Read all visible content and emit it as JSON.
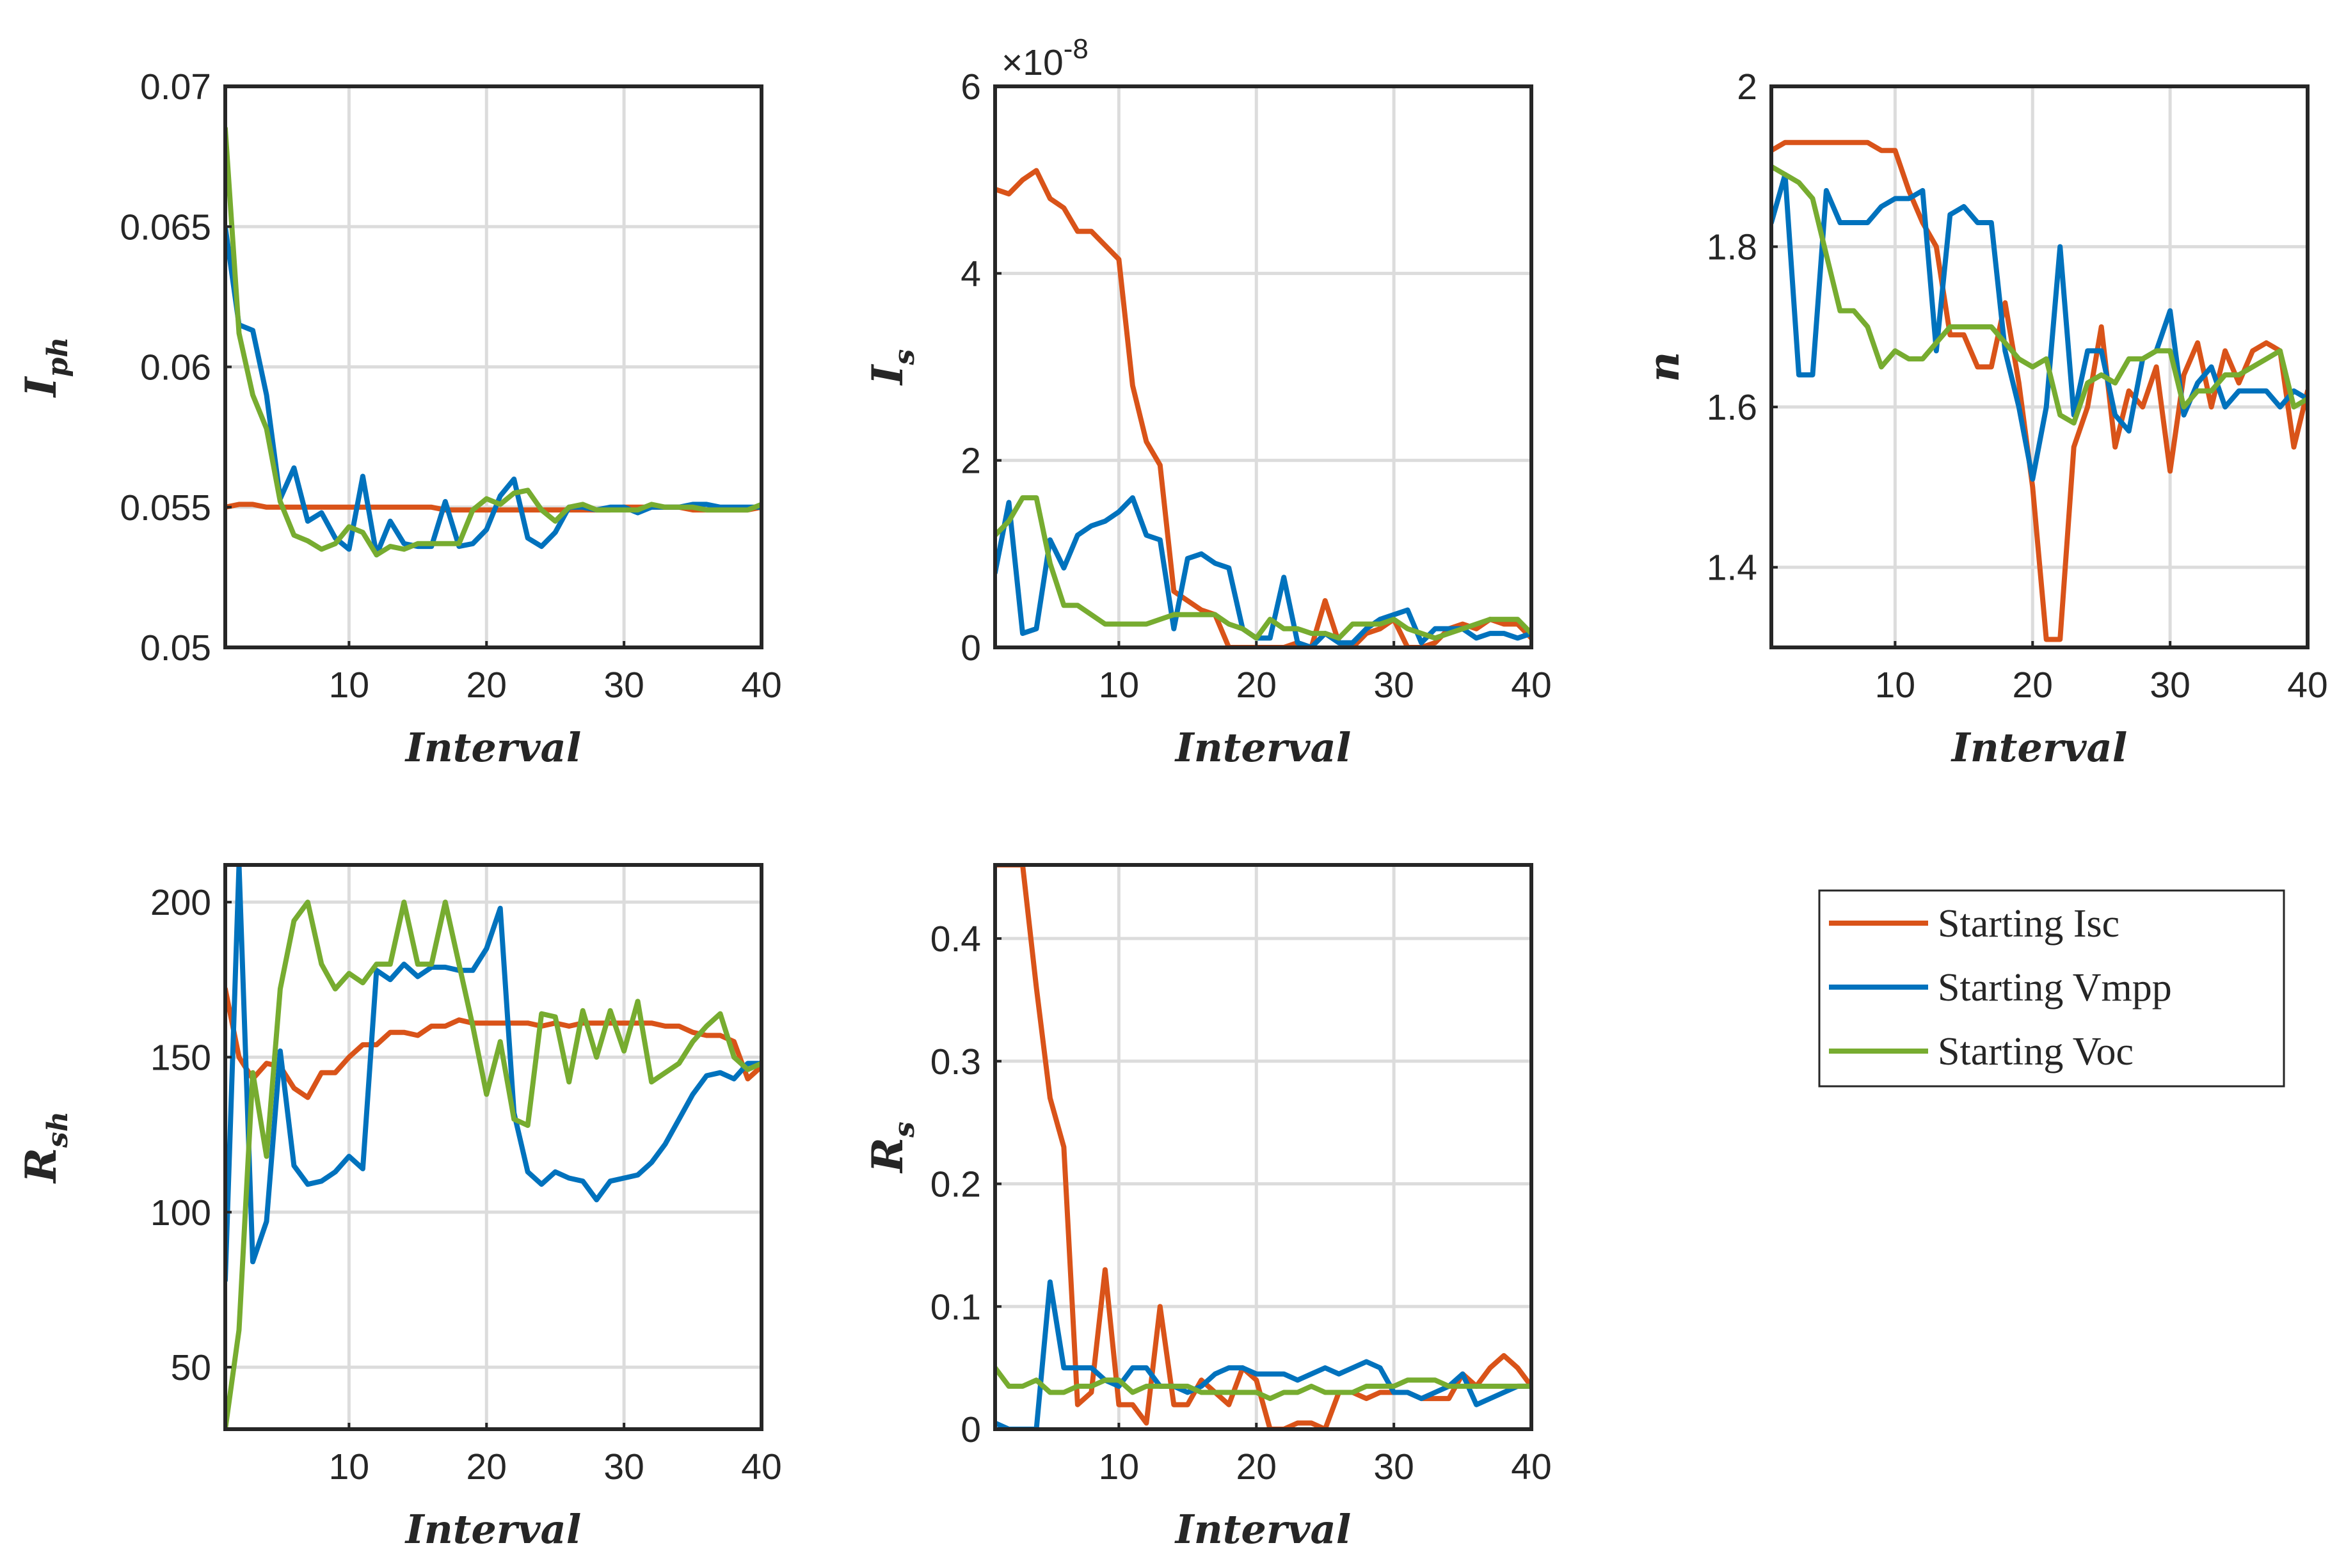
{
  "series_styles": [
    {
      "name": "Starting Isc",
      "color": "#D95319"
    },
    {
      "name": "Starting Vmpp",
      "color": "#0072BD"
    },
    {
      "name": "Starting Voc",
      "color": "#77AC30"
    }
  ],
  "legend": {
    "placement": "right"
  },
  "chart_data": [
    {
      "type": "line",
      "id": "iph",
      "ylabel": "I",
      "ylabel_sub": "ph",
      "ylabel_sub_style": "subscript",
      "xlabel": "Interval",
      "xlim": [
        1,
        40
      ],
      "ylim": [
        0.05,
        0.07
      ],
      "xticks": [
        10,
        20,
        30,
        40
      ],
      "xticklabels": [
        "10",
        "20",
        "30",
        "40"
      ],
      "yticks": [
        0.05,
        0.055,
        0.06,
        0.065,
        0.07
      ],
      "yticklabels": [
        "0.05",
        "0.055",
        "0.06",
        "0.065",
        "0.07"
      ],
      "grid": true,
      "x": [
        1,
        2,
        3,
        4,
        5,
        6,
        7,
        8,
        9,
        10,
        11,
        12,
        13,
        14,
        15,
        16,
        17,
        18,
        19,
        20,
        21,
        22,
        23,
        24,
        25,
        26,
        27,
        28,
        29,
        30,
        31,
        32,
        33,
        34,
        35,
        36,
        37,
        38,
        39,
        40
      ],
      "series": [
        {
          "name": "Starting Isc",
          "values": [
            0.055,
            0.0551,
            0.0551,
            0.055,
            0.055,
            0.055,
            0.055,
            0.055,
            0.055,
            0.055,
            0.055,
            0.055,
            0.055,
            0.055,
            0.055,
            0.055,
            0.0549,
            0.0549,
            0.0549,
            0.0549,
            0.0549,
            0.0549,
            0.0549,
            0.0549,
            0.0549,
            0.0549,
            0.0549,
            0.0549,
            0.0549,
            0.055,
            0.055,
            0.055,
            0.055,
            0.055,
            0.0549,
            0.0549,
            0.0549,
            0.0549,
            0.0549,
            0.055
          ]
        },
        {
          "name": "Starting Vmpp",
          "values": [
            0.065,
            0.0615,
            0.0613,
            0.059,
            0.0553,
            0.0564,
            0.0545,
            0.0548,
            0.0539,
            0.0535,
            0.0561,
            0.0533,
            0.0545,
            0.0537,
            0.0536,
            0.0536,
            0.0552,
            0.0536,
            0.0537,
            0.0542,
            0.0554,
            0.056,
            0.0539,
            0.0536,
            0.0541,
            0.055,
            0.055,
            0.0549,
            0.055,
            0.055,
            0.0548,
            0.055,
            0.055,
            0.055,
            0.0551,
            0.0551,
            0.055,
            0.055,
            0.055,
            0.055
          ]
        },
        {
          "name": "Starting Voc",
          "values": [
            0.0685,
            0.0612,
            0.059,
            0.0578,
            0.0552,
            0.054,
            0.0538,
            0.0535,
            0.0537,
            0.0543,
            0.0541,
            0.0533,
            0.0536,
            0.0535,
            0.0537,
            0.0537,
            0.0537,
            0.0537,
            0.0549,
            0.0553,
            0.0551,
            0.0555,
            0.0556,
            0.0549,
            0.0545,
            0.055,
            0.0551,
            0.0549,
            0.0549,
            0.0549,
            0.0549,
            0.0551,
            0.055,
            0.055,
            0.055,
            0.0549,
            0.0549,
            0.0549,
            0.0549,
            0.0551
          ]
        }
      ]
    },
    {
      "type": "line",
      "id": "is",
      "ylabel": "I",
      "ylabel_sub": "s",
      "ylabel_sub_style": "subscript",
      "xlabel": "Interval",
      "exponent_label": "×10",
      "exponent_power": "-8",
      "xlim": [
        1,
        40
      ],
      "ylim": [
        0,
        6
      ],
      "xticks": [
        10,
        20,
        30,
        40
      ],
      "xticklabels": [
        "10",
        "20",
        "30",
        "40"
      ],
      "yticks": [
        0,
        2,
        4,
        6
      ],
      "yticklabels": [
        "0",
        "2",
        "4",
        "6"
      ],
      "grid": true,
      "x": [
        1,
        2,
        3,
        4,
        5,
        6,
        7,
        8,
        9,
        10,
        11,
        12,
        13,
        14,
        15,
        16,
        17,
        18,
        19,
        20,
        21,
        22,
        23,
        24,
        25,
        26,
        27,
        28,
        29,
        30,
        31,
        32,
        33,
        34,
        35,
        36,
        37,
        38,
        39,
        40
      ],
      "series": [
        {
          "name": "Starting Isc",
          "values": [
            4.9,
            4.85,
            5.0,
            5.1,
            4.8,
            4.7,
            4.45,
            4.45,
            4.3,
            4.15,
            2.8,
            2.2,
            1.95,
            0.6,
            0.5,
            0.4,
            0.35,
            0.0,
            0.0,
            0.0,
            0.0,
            0.0,
            0.05,
            0.0,
            0.5,
            0.05,
            0.0,
            0.15,
            0.2,
            0.3,
            0.0,
            0.0,
            0.05,
            0.2,
            0.25,
            0.2,
            0.3,
            0.25,
            0.25,
            0.1
          ]
        },
        {
          "name": "Starting Vmpp",
          "values": [
            0.8,
            1.55,
            0.15,
            0.2,
            1.15,
            0.85,
            1.2,
            1.3,
            1.35,
            1.45,
            1.6,
            1.2,
            1.15,
            0.2,
            0.95,
            1.0,
            0.9,
            0.85,
            0.2,
            0.1,
            0.1,
            0.75,
            0.05,
            0.0,
            0.15,
            0.05,
            0.05,
            0.2,
            0.3,
            0.35,
            0.4,
            0.05,
            0.2,
            0.2,
            0.2,
            0.1,
            0.15,
            0.15,
            0.1,
            0.15
          ]
        },
        {
          "name": "Starting Voc",
          "values": [
            1.2,
            1.35,
            1.6,
            1.6,
            0.9,
            0.45,
            0.45,
            0.35,
            0.25,
            0.25,
            0.25,
            0.25,
            0.3,
            0.35,
            0.35,
            0.35,
            0.35,
            0.25,
            0.2,
            0.1,
            0.3,
            0.2,
            0.2,
            0.15,
            0.15,
            0.1,
            0.25,
            0.25,
            0.25,
            0.3,
            0.2,
            0.15,
            0.1,
            0.15,
            0.2,
            0.25,
            0.3,
            0.3,
            0.3,
            0.15
          ]
        }
      ]
    },
    {
      "type": "line",
      "id": "n",
      "ylabel": "n",
      "ylabel_sub": "",
      "ylabel_sub_style": "subscript",
      "xlabel": "Interval",
      "xlim": [
        1,
        40
      ],
      "ylim": [
        1.3,
        2.0
      ],
      "xticks": [
        10,
        20,
        30,
        40
      ],
      "xticklabels": [
        "10",
        "20",
        "30",
        "40"
      ],
      "yticks": [
        1.4,
        1.6,
        1.8,
        2.0
      ],
      "yticklabels": [
        "1.4",
        "1.6",
        "1.8",
        "2"
      ],
      "grid": true,
      "x": [
        1,
        2,
        3,
        4,
        5,
        6,
        7,
        8,
        9,
        10,
        11,
        12,
        13,
        14,
        15,
        16,
        17,
        18,
        19,
        20,
        21,
        22,
        23,
        24,
        25,
        26,
        27,
        28,
        29,
        30,
        31,
        32,
        33,
        34,
        35,
        36,
        37,
        38,
        39,
        40
      ],
      "series": [
        {
          "name": "Starting Isc",
          "values": [
            1.92,
            1.93,
            1.93,
            1.93,
            1.93,
            1.93,
            1.93,
            1.93,
            1.92,
            1.92,
            1.87,
            1.83,
            1.8,
            1.69,
            1.69,
            1.65,
            1.65,
            1.73,
            1.63,
            1.5,
            1.31,
            1.31,
            1.55,
            1.6,
            1.7,
            1.55,
            1.62,
            1.6,
            1.65,
            1.52,
            1.64,
            1.68,
            1.6,
            1.67,
            1.63,
            1.67,
            1.68,
            1.67,
            1.55,
            1.62
          ]
        },
        {
          "name": "Starting Vmpp",
          "values": [
            1.83,
            1.89,
            1.64,
            1.64,
            1.87,
            1.83,
            1.83,
            1.83,
            1.85,
            1.86,
            1.86,
            1.87,
            1.67,
            1.84,
            1.85,
            1.83,
            1.83,
            1.67,
            1.6,
            1.51,
            1.6,
            1.8,
            1.59,
            1.67,
            1.67,
            1.59,
            1.57,
            1.66,
            1.67,
            1.72,
            1.59,
            1.63,
            1.65,
            1.6,
            1.62,
            1.62,
            1.62,
            1.6,
            1.62,
            1.61
          ]
        },
        {
          "name": "Starting Voc",
          "values": [
            1.9,
            1.89,
            1.88,
            1.86,
            1.79,
            1.72,
            1.72,
            1.7,
            1.65,
            1.67,
            1.66,
            1.66,
            1.68,
            1.7,
            1.7,
            1.7,
            1.7,
            1.68,
            1.66,
            1.65,
            1.66,
            1.59,
            1.58,
            1.63,
            1.64,
            1.63,
            1.66,
            1.66,
            1.67,
            1.67,
            1.6,
            1.62,
            1.62,
            1.64,
            1.64,
            1.65,
            1.66,
            1.67,
            1.6,
            1.61
          ]
        }
      ]
    },
    {
      "type": "line",
      "id": "rsh",
      "ylabel": "R",
      "ylabel_sub": "sh",
      "ylabel_sub_style": "subscript",
      "xlabel": "Interval",
      "xlim": [
        1,
        40
      ],
      "ylim": [
        30,
        212
      ],
      "xticks": [
        10,
        20,
        30,
        40
      ],
      "xticklabels": [
        "10",
        "20",
        "30",
        "40"
      ],
      "yticks": [
        50,
        100,
        150,
        200
      ],
      "yticklabels": [
        "50",
        "100",
        "150",
        "200"
      ],
      "grid": true,
      "x": [
        1,
        2,
        3,
        4,
        5,
        6,
        7,
        8,
        9,
        10,
        11,
        12,
        13,
        14,
        15,
        16,
        17,
        18,
        19,
        20,
        21,
        22,
        23,
        24,
        25,
        26,
        27,
        28,
        29,
        30,
        31,
        32,
        33,
        34,
        35,
        36,
        37,
        38,
        39,
        40
      ],
      "series": [
        {
          "name": "Starting Isc",
          "values": [
            172,
            150,
            143,
            148,
            147,
            140,
            137,
            145,
            145,
            150,
            154,
            154,
            158,
            158,
            157,
            160,
            160,
            162,
            161,
            161,
            161,
            161,
            161,
            160,
            161,
            160,
            161,
            161,
            161,
            161,
            161,
            161,
            160,
            160,
            158,
            157,
            157,
            155,
            143,
            147
          ]
        },
        {
          "name": "Starting Vmpp",
          "values": [
            78,
            212,
            84,
            97,
            152,
            115,
            109,
            110,
            113,
            118,
            114,
            178,
            175,
            180,
            176,
            179,
            179,
            178,
            178,
            185,
            198,
            132,
            113,
            109,
            113,
            111,
            110,
            104,
            110,
            111,
            112,
            116,
            122,
            130,
            138,
            144,
            145,
            143,
            148,
            148
          ]
        },
        {
          "name": "Starting Voc",
          "values": [
            30,
            62,
            145,
            118,
            172,
            194,
            200,
            180,
            172,
            177,
            174,
            180,
            180,
            200,
            180,
            180,
            200,
            180,
            160,
            138,
            155,
            130,
            128,
            164,
            163,
            142,
            165,
            150,
            165,
            152,
            168,
            142,
            145,
            148,
            155,
            160,
            164,
            150,
            146,
            148
          ]
        }
      ]
    },
    {
      "type": "line",
      "id": "rs",
      "ylabel": "R",
      "ylabel_sub": "s",
      "ylabel_sub_style": "subscript",
      "xlabel": "Interval",
      "xlim": [
        1,
        40
      ],
      "ylim": [
        0,
        0.46
      ],
      "xticks": [
        10,
        20,
        30,
        40
      ],
      "xticklabels": [
        "10",
        "20",
        "30",
        "40"
      ],
      "yticks": [
        0,
        0.1,
        0.2,
        0.3,
        0.4
      ],
      "yticklabels": [
        "0",
        "0.1",
        "0.2",
        "0.3",
        "0.4"
      ],
      "grid": true,
      "x": [
        1,
        2,
        3,
        4,
        5,
        6,
        7,
        8,
        9,
        10,
        11,
        12,
        13,
        14,
        15,
        16,
        17,
        18,
        19,
        20,
        21,
        22,
        23,
        24,
        25,
        26,
        27,
        28,
        29,
        30,
        31,
        32,
        33,
        34,
        35,
        36,
        37,
        38,
        39,
        40
      ],
      "series": [
        {
          "name": "Starting Isc",
          "values": [
            0.46,
            0.46,
            0.46,
            0.36,
            0.27,
            0.23,
            0.02,
            0.03,
            0.13,
            0.02,
            0.02,
            0.005,
            0.1,
            0.02,
            0.02,
            0.04,
            0.03,
            0.02,
            0.05,
            0.04,
            0.0,
            0.0,
            0.005,
            0.005,
            0.0,
            0.03,
            0.03,
            0.025,
            0.03,
            0.03,
            0.03,
            0.025,
            0.025,
            0.025,
            0.045,
            0.035,
            0.05,
            0.06,
            0.05,
            0.035
          ]
        },
        {
          "name": "Starting Vmpp",
          "values": [
            0.005,
            0.0,
            0.0,
            0.0,
            0.12,
            0.05,
            0.05,
            0.05,
            0.04,
            0.035,
            0.05,
            0.05,
            0.035,
            0.035,
            0.03,
            0.035,
            0.045,
            0.05,
            0.05,
            0.045,
            0.045,
            0.045,
            0.04,
            0.045,
            0.05,
            0.045,
            0.05,
            0.055,
            0.05,
            0.03,
            0.03,
            0.025,
            0.03,
            0.035,
            0.045,
            0.02,
            0.025,
            0.03,
            0.035,
            0.035
          ]
        },
        {
          "name": "Starting Voc",
          "values": [
            0.05,
            0.035,
            0.035,
            0.04,
            0.03,
            0.03,
            0.035,
            0.035,
            0.04,
            0.04,
            0.03,
            0.035,
            0.035,
            0.035,
            0.035,
            0.03,
            0.03,
            0.03,
            0.03,
            0.03,
            0.025,
            0.03,
            0.03,
            0.035,
            0.03,
            0.03,
            0.03,
            0.035,
            0.035,
            0.035,
            0.04,
            0.04,
            0.04,
            0.035,
            0.035,
            0.035,
            0.035,
            0.035,
            0.035,
            0.035
          ]
        }
      ]
    }
  ]
}
